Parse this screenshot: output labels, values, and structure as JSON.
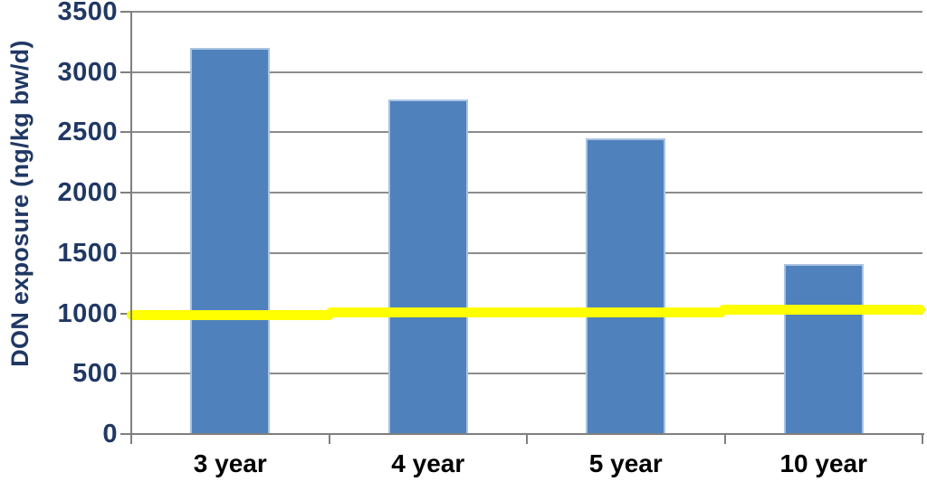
{
  "chart_data": {
    "type": "bar",
    "title": "",
    "ylabel": "DON exposure (ng/kg bw/d)",
    "xlabel": "",
    "categories": [
      "3 year",
      "4 year",
      "5 year",
      "10 year"
    ],
    "values": [
      3200,
      2770,
      2450,
      1410
    ],
    "ylim": [
      0,
      3500
    ],
    "ytick_step": 500,
    "ytick_labels": [
      "0",
      "500",
      "1000",
      "1500",
      "2000",
      "2500",
      "3000",
      "3500"
    ],
    "grid": "horizontal",
    "legend": "none",
    "bar_color": "#4f81bd",
    "bar_edge_color": "#a9c3e2",
    "gridline_color": "#8c8c8c",
    "axis_line_color": "#7f7f7f",
    "y_text_color": "#203864",
    "x_text_color": "#000000",
    "reference_line": {
      "approx_value": 1000,
      "color": "#ffff00",
      "style": "thick-freehand-3-segments",
      "segments": [
        {
          "x0": -0.006,
          "x1": 0.256,
          "value": 985
        },
        {
          "x0": 0.246,
          "x1": 0.752,
          "value": 1005
        },
        {
          "x0": 0.742,
          "x1": 1.003,
          "value": 1032
        }
      ]
    }
  }
}
